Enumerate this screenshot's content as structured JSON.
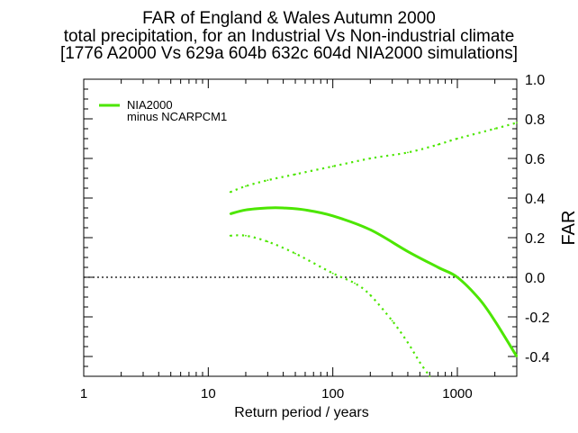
{
  "chart_data": {
    "type": "line",
    "title": [
      "FAR of England & Wales Autumn 2000",
      "total precipitation, for an Industrial Vs Non-industrial climate",
      "[1776 A2000 Vs 629a 604b 632c 604d NIA2000 simulations]"
    ],
    "xlabel": "Return period / years",
    "ylabel": "FAR",
    "xscale": "log",
    "xlim": [
      1,
      3000
    ],
    "ylim": [
      -0.5,
      1.0
    ],
    "xticks": [
      {
        "value": 1,
        "label": "1"
      },
      {
        "value": 10,
        "label": "10"
      },
      {
        "value": 100,
        "label": "100"
      },
      {
        "value": 1000,
        "label": "1000"
      }
    ],
    "yticks": [
      {
        "value": 1.0,
        "label": "1.0"
      },
      {
        "value": 0.8,
        "label": "0.8"
      },
      {
        "value": 0.6,
        "label": "0.6"
      },
      {
        "value": 0.4,
        "label": "0.4"
      },
      {
        "value": 0.2,
        "label": "0.2"
      },
      {
        "value": 0.0,
        "label": "0.0"
      },
      {
        "value": -0.2,
        "label": "-0.2"
      },
      {
        "value": -0.4,
        "label": "-0.4"
      }
    ],
    "yaxis_side": "right",
    "reference_line": {
      "y": 0.0,
      "style": "dotted",
      "color": "#000000"
    },
    "legend": {
      "position": "top-left",
      "entries": [
        "NIA2000",
        "minus NCARPCM1"
      ]
    },
    "series": [
      {
        "name": "NIA2000 minus NCARPCM1 (best estimate)",
        "style": "solid",
        "color": "#4ce600",
        "x": [
          15,
          20,
          30,
          40,
          60,
          100,
          200,
          400,
          700,
          1000,
          1500,
          2000,
          3000
        ],
        "y": [
          0.32,
          0.34,
          0.35,
          0.35,
          0.34,
          0.31,
          0.24,
          0.13,
          0.05,
          0.0,
          -0.11,
          -0.22,
          -0.4
        ]
      },
      {
        "name": "upper bound",
        "style": "dotted",
        "color": "#4ce600",
        "x": [
          15,
          20,
          30,
          50,
          100,
          200,
          400,
          700,
          1000,
          2000,
          3000
        ],
        "y": [
          0.43,
          0.46,
          0.49,
          0.52,
          0.56,
          0.6,
          0.63,
          0.67,
          0.7,
          0.75,
          0.78
        ]
      },
      {
        "name": "lower bound",
        "style": "dotted",
        "color": "#4ce600",
        "x": [
          15,
          20,
          30,
          50,
          100,
          150,
          200,
          300,
          400,
          500,
          600
        ],
        "y": [
          0.21,
          0.21,
          0.18,
          0.12,
          0.02,
          -0.03,
          -0.09,
          -0.22,
          -0.33,
          -0.43,
          -0.5
        ]
      }
    ]
  }
}
